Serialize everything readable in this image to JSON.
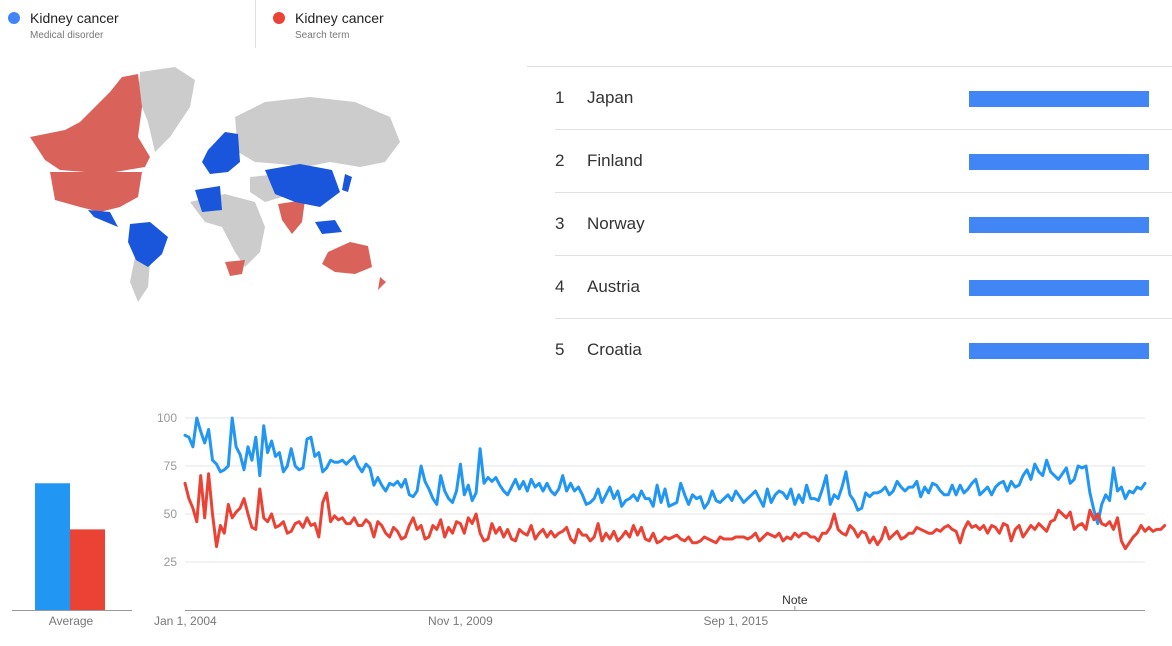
{
  "legend": [
    {
      "term": "Kidney cancer",
      "type": "Medical disorder",
      "color": "#4285f4"
    },
    {
      "term": "Kidney cancer",
      "type": "Search term",
      "color": "#ea4335"
    }
  ],
  "ranking": [
    {
      "rank": "1",
      "country": "Japan",
      "value": 100
    },
    {
      "rank": "2",
      "country": "Finland",
      "value": 100
    },
    {
      "rank": "3",
      "country": "Norway",
      "value": 100
    },
    {
      "rank": "4",
      "country": "Austria",
      "value": 100
    },
    {
      "rank": "5",
      "country": "Croatia",
      "value": 100
    }
  ],
  "map_colors": {
    "land": "#cccccc",
    "blue": "#1a56db",
    "red": "#d9635a"
  },
  "chart_data": {
    "type": "line",
    "x_ticks": [
      "Jan 1, 2004",
      "Nov 1, 2009",
      "Sep 1, 2015"
    ],
    "y_ticks": [
      25,
      50,
      75,
      100
    ],
    "ylim": [
      0,
      100
    ],
    "annotation": "Note",
    "average_label": "Average",
    "averages": [
      66,
      42
    ],
    "grid": true,
    "series": [
      {
        "color": "#2196f3",
        "values": [
          91,
          90,
          85,
          100,
          93,
          87,
          94,
          78,
          76,
          72,
          73,
          75,
          100,
          85,
          81,
          73,
          85,
          78,
          90,
          70,
          96,
          82,
          88,
          80,
          82,
          72,
          75,
          84,
          75,
          73,
          74,
          89,
          90,
          80,
          82,
          72,
          74,
          78,
          77,
          77,
          78,
          76,
          78,
          80,
          75,
          72,
          76,
          74,
          65,
          69,
          65,
          62,
          66,
          65,
          67,
          64,
          68,
          60,
          59,
          62,
          75,
          67,
          63,
          58,
          55,
          70,
          62,
          58,
          56,
          62,
          76,
          60,
          65,
          57,
          61,
          84,
          66,
          69,
          67,
          69,
          65,
          62,
          60,
          64,
          68,
          63,
          67,
          62,
          68,
          64,
          66,
          62,
          66,
          62,
          60,
          63,
          70,
          62,
          66,
          62,
          64,
          60,
          55,
          56,
          58,
          63,
          56,
          60,
          64,
          58,
          62,
          54,
          57,
          58,
          60,
          57,
          62,
          58,
          58,
          54,
          65,
          56,
          63,
          54,
          55,
          56,
          66,
          60,
          55,
          60,
          58,
          59,
          53,
          56,
          62,
          57,
          56,
          58,
          60,
          57,
          62,
          59,
          56,
          58,
          60,
          62,
          58,
          54,
          63,
          56,
          60,
          62,
          61,
          58,
          63,
          55,
          60,
          56,
          65,
          58,
          58,
          57,
          63,
          70,
          55,
          60,
          58,
          64,
          72,
          60,
          57,
          52,
          53,
          61,
          59,
          61,
          61,
          62,
          64,
          60,
          62,
          67,
          64,
          62,
          64,
          64,
          67,
          59,
          64,
          61,
          66,
          65,
          62,
          60,
          60,
          65,
          60,
          65,
          61,
          63,
          66,
          68,
          60,
          62,
          64,
          60,
          64,
          66,
          67,
          62,
          67,
          64,
          65,
          70,
          73,
          68,
          76,
          72,
          70,
          78,
          72,
          70,
          68,
          71,
          74,
          66,
          68,
          75,
          74,
          75,
          61,
          52,
          45,
          55,
          60,
          57,
          74,
          62,
          64,
          58,
          62,
          61,
          64,
          63,
          66
        ]
      },
      {
        "color": "#ea4335",
        "values": [
          66,
          58,
          53,
          46,
          70,
          48,
          71,
          50,
          33,
          44,
          40,
          55,
          48,
          51,
          53,
          58,
          50,
          43,
          42,
          63,
          48,
          46,
          50,
          43,
          44,
          46,
          40,
          41,
          45,
          46,
          43,
          48,
          44,
          45,
          38,
          56,
          61,
          46,
          49,
          47,
          48,
          45,
          45,
          48,
          44,
          44,
          47,
          45,
          38,
          46,
          44,
          40,
          38,
          43,
          41,
          37,
          38,
          44,
          48,
          42,
          44,
          37,
          38,
          44,
          42,
          47,
          38,
          43,
          40,
          46,
          45,
          40,
          48,
          45,
          50,
          40,
          36,
          37,
          45,
          40,
          43,
          38,
          42,
          37,
          36,
          42,
          40,
          39,
          44,
          37,
          40,
          42,
          38,
          41,
          38,
          40,
          41,
          43,
          37,
          35,
          42,
          39,
          39,
          36,
          38,
          45,
          36,
          40,
          37,
          41,
          36,
          38,
          41,
          38,
          44,
          39,
          43,
          37,
          36,
          40,
          35,
          36,
          38,
          37,
          38,
          39,
          37,
          36,
          38,
          35,
          35,
          36,
          38,
          37,
          36,
          35,
          38,
          37,
          37,
          37,
          38,
          38,
          38,
          37,
          38,
          40,
          36,
          38,
          40,
          39,
          38,
          40,
          36,
          38,
          37,
          40,
          38,
          40,
          40,
          38,
          38,
          36,
          40,
          40,
          43,
          50,
          42,
          40,
          39,
          44,
          42,
          38,
          41,
          40,
          35,
          38,
          34,
          37,
          43,
          37,
          39,
          41,
          37,
          38,
          40,
          40,
          43,
          42,
          41,
          40,
          40,
          42,
          41,
          43,
          44,
          42,
          41,
          35,
          42,
          46,
          43,
          44,
          42,
          44,
          40,
          44,
          43,
          40,
          45,
          44,
          36,
          42,
          44,
          38,
          41,
          44,
          42,
          45,
          43,
          41,
          46,
          47,
          52,
          50,
          48,
          51,
          42,
          44,
          45,
          42,
          52,
          47,
          50,
          45,
          44,
          46,
          42,
          48,
          36,
          32,
          35,
          38,
          40,
          44,
          41,
          43,
          41,
          42,
          42,
          44
        ]
      }
    ]
  }
}
